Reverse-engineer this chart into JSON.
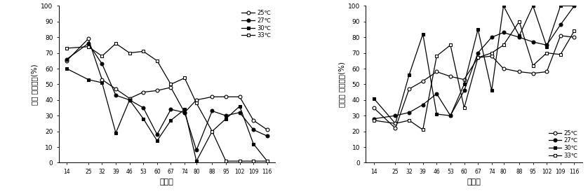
{
  "x_ticks": [
    14,
    25,
    32,
    39,
    46,
    53,
    60,
    67,
    74,
    80,
    88,
    95,
    102,
    109,
    116
  ],
  "xlabel": "산란일",
  "chart1_ylabel": "대지 산란비율(%)",
  "chart2_ylabel": "밀기울 산란비율(%)",
  "ylim": [
    0,
    100
  ],
  "yticks": [
    0,
    10,
    20,
    30,
    40,
    50,
    60,
    70,
    80,
    90,
    100
  ],
  "chart1": {
    "25C": [
      65,
      79,
      53,
      47,
      41,
      45,
      46,
      48,
      32,
      40,
      42,
      42,
      42,
      27,
      21
    ],
    "27C": [
      66,
      76,
      63,
      43,
      40,
      35,
      18,
      34,
      32,
      8,
      33,
      30,
      32,
      21,
      17
    ],
    "30C": [
      60,
      53,
      51,
      19,
      40,
      28,
      14,
      27,
      34,
      1,
      20,
      28,
      36,
      12,
      1
    ],
    "33C": [
      73,
      74,
      68,
      76,
      70,
      71,
      65,
      50,
      54,
      38,
      20,
      1,
      1,
      1,
      1
    ]
  },
  "chart2": {
    "25C": [
      35,
      22,
      47,
      52,
      58,
      55,
      53,
      67,
      68,
      60,
      58,
      57,
      58,
      81,
      80
    ],
    "27C": [
      28,
      30,
      32,
      37,
      44,
      30,
      46,
      70,
      80,
      83,
      80,
      77,
      75,
      88,
      100
    ],
    "30C": [
      41,
      25,
      56,
      82,
      31,
      30,
      50,
      85,
      46,
      100,
      81,
      100,
      74,
      100,
      100
    ],
    "33C": [
      27,
      25,
      27,
      21,
      68,
      75,
      35,
      67,
      70,
      75,
      90,
      62,
      70,
      69,
      84
    ]
  },
  "legend_labels_1": [
    "25℃",
    "27℃",
    "30℃",
    "33℃"
  ],
  "legend_labels_2": [
    "25℃",
    "27℃",
    "30℃",
    "33℃"
  ]
}
